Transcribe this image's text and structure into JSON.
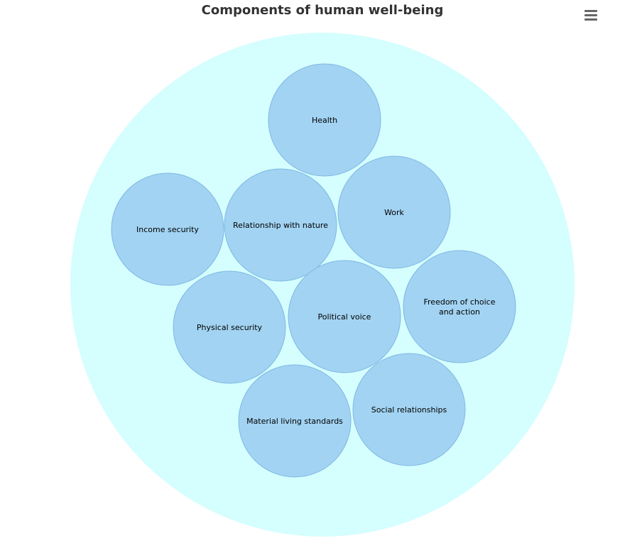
{
  "chart_data": {
    "type": "packed-bubble",
    "title": "Components of human well-being",
    "parent_color": "#d5fefe",
    "bubble_color": "#a2d3f2",
    "bubble_stroke": "#7fb8e6",
    "bubbles": [
      {
        "name": "Health",
        "lines": [
          "Health"
        ]
      },
      {
        "name": "Work",
        "lines": [
          "Work"
        ]
      },
      {
        "name": "Income security",
        "lines": [
          "Income security"
        ]
      },
      {
        "name": "Relationship with nature",
        "lines": [
          "Relationship with nature"
        ]
      },
      {
        "name": "Physical security",
        "lines": [
          "Physical security"
        ]
      },
      {
        "name": "Political voice",
        "lines": [
          "Political voice"
        ]
      },
      {
        "name": "Freedom of choice and action",
        "lines": [
          "Freedom of choice",
          "and action"
        ]
      },
      {
        "name": "Material living standards",
        "lines": [
          "Material living standards"
        ]
      },
      {
        "name": "Social relationships",
        "lines": [
          "Social relationships"
        ]
      }
    ]
  },
  "menu": {
    "icon": "hamburger-menu-icon"
  }
}
